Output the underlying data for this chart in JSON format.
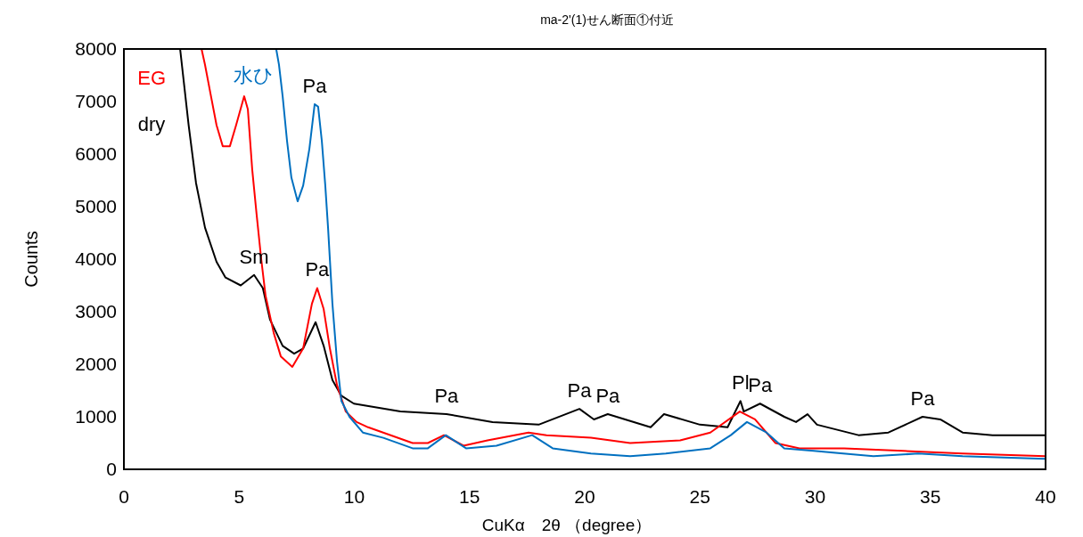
{
  "chart_data": {
    "type": "line",
    "title": "ma-2'(1)せん断面①付近",
    "xlabel": "CuKα　2θ （degree）",
    "ylabel": "Counts",
    "xlim": [
      0,
      40
    ],
    "xticks": [
      0,
      5,
      10,
      15,
      20,
      25,
      30,
      35,
      40
    ],
    "ylim": [
      0,
      8000
    ],
    "yticks": [
      0,
      1000,
      2000,
      3000,
      4000,
      5000,
      6000,
      7000,
      8000
    ],
    "grid": false,
    "legend": false,
    "marker": "none",
    "line_style": "solid",
    "series": [
      {
        "name": "dry",
        "color": "#000000",
        "x": [
          2.44,
          2.81,
          3.13,
          3.52,
          4.02,
          4.41,
          5.07,
          5.65,
          6.03,
          6.34,
          6.89,
          7.39,
          7.78,
          8.32,
          8.67,
          9.05,
          9.44,
          9.98,
          12,
          14,
          16,
          18,
          19.77,
          20.4,
          21.0,
          22.86,
          23.44,
          25,
          26.2,
          26.76,
          26.9,
          27.61,
          28.66,
          29.17,
          29.67,
          30.08,
          31.88,
          33.18,
          34.66,
          35.43,
          36.4,
          37.7,
          40
        ],
        "values": [
          8000,
          6550,
          5450,
          4600,
          3950,
          3650,
          3500,
          3700,
          3450,
          2850,
          2350,
          2200,
          2300,
          2800,
          2350,
          1700,
          1400,
          1250,
          1100,
          1050,
          900,
          850,
          1150,
          950,
          1050,
          800,
          1050,
          850,
          800,
          1300,
          1100,
          1250,
          1000,
          900,
          1050,
          850,
          650,
          700,
          1000,
          950,
          700,
          650,
          650
        ]
      },
      {
        "name": "EG",
        "color": "#ff0000",
        "x": [
          3.37,
          3.52,
          3.78,
          4.02,
          4.29,
          4.6,
          4.87,
          5.22,
          5.38,
          5.57,
          5.76,
          5.96,
          6.15,
          6.5,
          6.81,
          7.31,
          7.78,
          8.16,
          8.39,
          8.67,
          8.94,
          9.25,
          9.63,
          10.1,
          10.6,
          12.53,
          13.19,
          13.89,
          14.74,
          15.78,
          17.56,
          18.34,
          20.27,
          21.97,
          24.14,
          25.45,
          26.73,
          27.39,
          28.28,
          29.32,
          31.26,
          33.81,
          36.4,
          40
        ],
        "values": [
          8000,
          7700,
          7100,
          6550,
          6150,
          6150,
          6550,
          7100,
          6850,
          5700,
          4850,
          4000,
          3300,
          2600,
          2150,
          1950,
          2300,
          3150,
          3450,
          3050,
          2300,
          1600,
          1100,
          900,
          800,
          500,
          500,
          650,
          450,
          550,
          700,
          650,
          600,
          500,
          550,
          700,
          1100,
          950,
          500,
          400,
          400,
          350,
          300,
          250
        ]
      },
      {
        "name": "水ひ",
        "color": "#0070c0",
        "x": [
          6.61,
          6.73,
          6.89,
          7.08,
          7.27,
          7.54,
          7.78,
          8.05,
          8.28,
          8.43,
          8.59,
          8.74,
          8.86,
          9.05,
          9.25,
          9.44,
          9.79,
          10.37,
          11.26,
          12.53,
          13.19,
          13.97,
          14.85,
          16.17,
          17.72,
          18.61,
          20.27,
          21.97,
          23.52,
          25.45,
          26.34,
          27.04,
          27.89,
          28.66,
          29.94,
          32.53,
          34.47,
          36.4,
          40
        ],
        "values": [
          8000,
          7700,
          7100,
          6250,
          5550,
          5100,
          5400,
          6100,
          6950,
          6900,
          6250,
          5400,
          4600,
          3150,
          2050,
          1300,
          1000,
          700,
          600,
          400,
          400,
          650,
          400,
          450,
          650,
          400,
          300,
          250,
          300,
          400,
          650,
          900,
          700,
          400,
          350,
          250,
          300,
          250,
          200
        ]
      }
    ],
    "annotations": [
      {
        "text": "Pa",
        "x": 8.28,
        "y": 6950
      },
      {
        "text": "Sm",
        "x": 5.65,
        "y": 3700
      },
      {
        "text": "Pa",
        "x": 8.39,
        "y": 3450
      },
      {
        "text": "Pa",
        "x": 14,
        "y": 1050
      },
      {
        "text": "Pa",
        "x": 19.77,
        "y": 1150
      },
      {
        "text": "Pa",
        "x": 21.0,
        "y": 1050
      },
      {
        "text": "Pl",
        "x": 26.76,
        "y": 1300
      },
      {
        "text": "Pa",
        "x": 27.61,
        "y": 1250
      },
      {
        "text": "Pa",
        "x": 34.66,
        "y": 1000
      }
    ]
  }
}
